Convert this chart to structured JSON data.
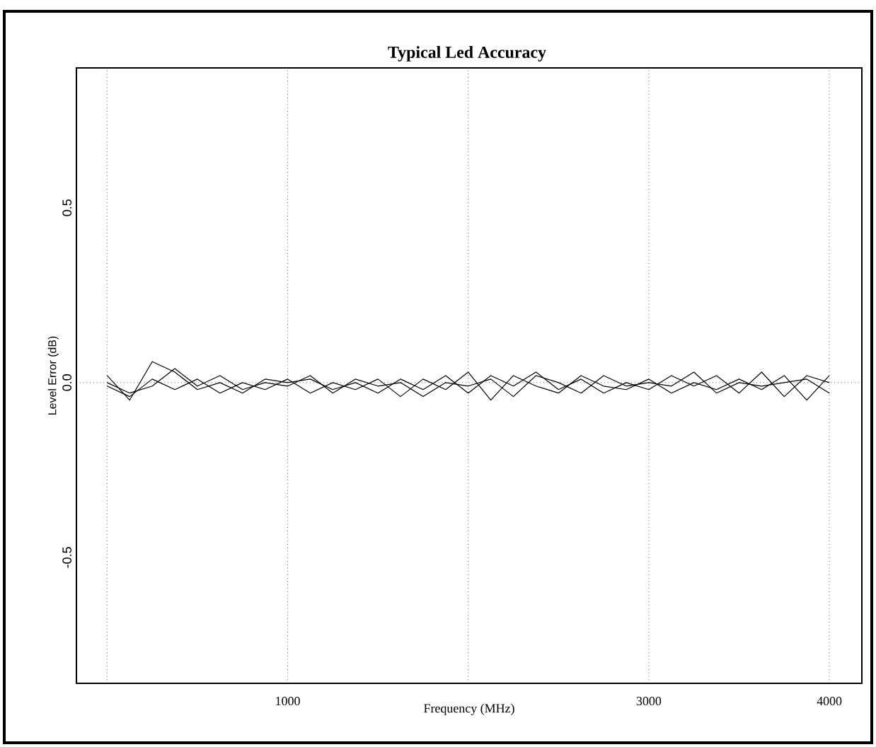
{
  "chart_data": {
    "type": "line",
    "title": "Typical Led Accuracy",
    "xlabel": "Frequency (MHz)",
    "ylabel": "Level Error (dB)",
    "xlim": [
      -170,
      4180
    ],
    "ylim": [
      -0.86,
      0.9
    ],
    "xticks": [
      {
        "value": 0,
        "label": null
      },
      1000,
      {
        "value": 2000,
        "label": null
      },
      3000,
      4000
    ],
    "yticks": [
      -0.5,
      {
        "value": 0,
        "label": "0.0"
      },
      0.5
    ],
    "grid": "x",
    "marker": "none",
    "line_style": "solid",
    "ref_lines": [
      {
        "axis": "y",
        "value": 0,
        "line_style": "dotted",
        "color": "#000000"
      }
    ],
    "x": [
      0,
      125,
      250,
      375,
      500,
      625,
      750,
      875,
      1000,
      1125,
      1250,
      1375,
      1500,
      1625,
      1750,
      1875,
      2000,
      2125,
      2250,
      2375,
      2500,
      2625,
      2750,
      2875,
      3000,
      3125,
      3250,
      3375,
      3500,
      3625,
      3750,
      3875,
      4000
    ],
    "series": [
      {
        "color": "#000000",
        "values": [
          0.02,
          -0.05,
          0.06,
          0.03,
          -0.02,
          0.0,
          -0.03,
          0.01,
          0.0,
          0.01,
          -0.02,
          0.0,
          -0.03,
          0.01,
          -0.02,
          0.02,
          -0.03,
          0.02,
          -0.01,
          0.03,
          -0.02,
          0.01,
          -0.03,
          0.0,
          -0.02,
          0.02,
          -0.01,
          0.02,
          -0.03,
          0.03,
          -0.04,
          0.02,
          0.0
        ]
      },
      {
        "color": "#000000",
        "values": [
          -0.01,
          -0.04,
          0.01,
          -0.02,
          0.01,
          -0.03,
          0.0,
          -0.02,
          0.01,
          -0.03,
          0.0,
          -0.02,
          0.01,
          -0.04,
          0.01,
          -0.02,
          0.03,
          -0.05,
          0.02,
          -0.01,
          -0.03,
          0.02,
          -0.01,
          -0.02,
          0.01,
          -0.03,
          0.0,
          -0.02,
          0.01,
          -0.02,
          0.02,
          -0.05,
          0.02
        ]
      },
      {
        "color": "#000000",
        "values": [
          0.0,
          -0.03,
          -0.01,
          0.04,
          -0.01,
          0.02,
          -0.02,
          0.0,
          -0.01,
          0.02,
          -0.03,
          0.01,
          -0.01,
          0.0,
          -0.04,
          0.0,
          -0.01,
          0.01,
          -0.04,
          0.02,
          0.0,
          -0.03,
          0.02,
          -0.01,
          0.0,
          -0.01,
          0.03,
          -0.03,
          0.0,
          -0.01,
          0.0,
          0.01,
          -0.03
        ]
      }
    ]
  }
}
